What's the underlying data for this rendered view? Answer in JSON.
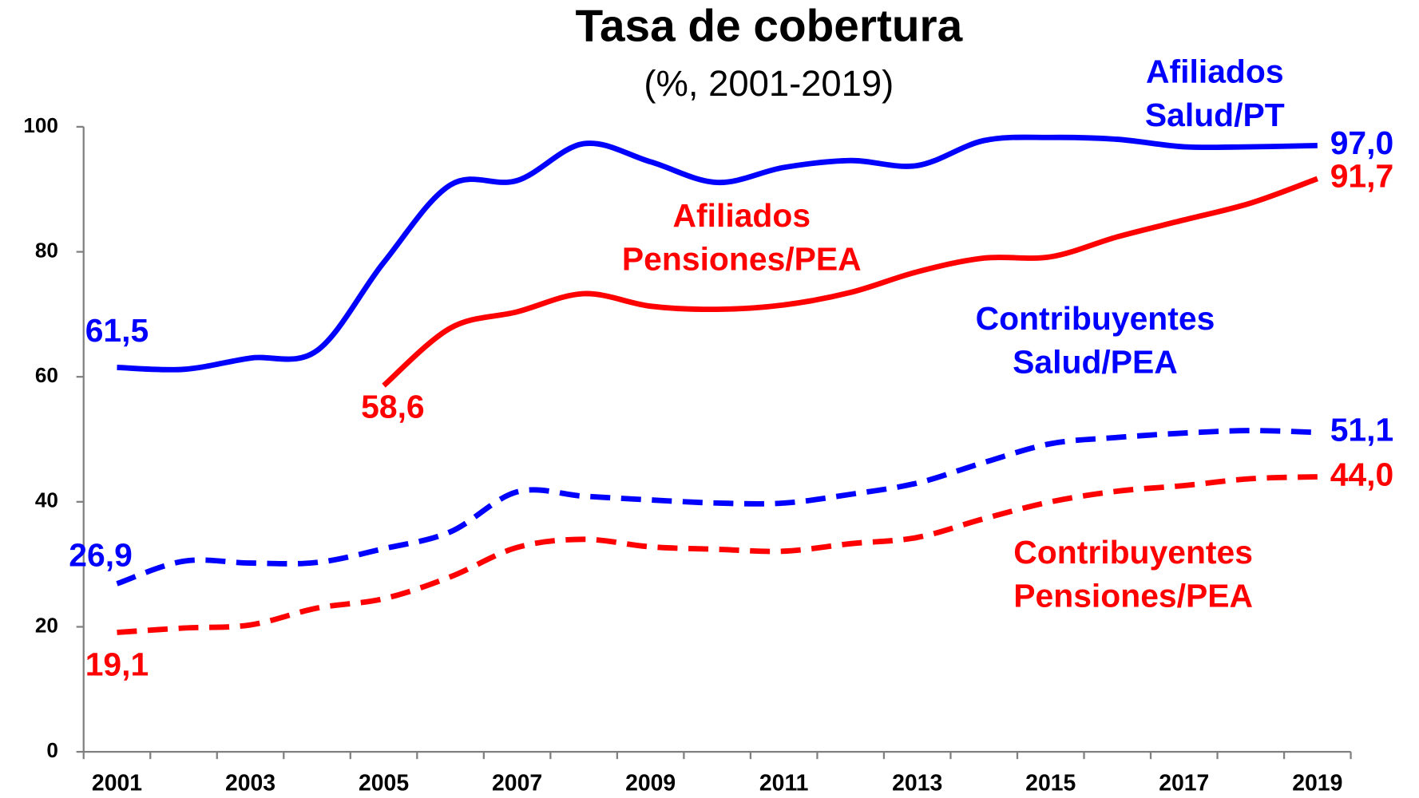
{
  "chart_data": {
    "type": "line",
    "title": "Tasa de cobertura",
    "subtitle": "(%, 2001-2019)",
    "categories": [
      "2001",
      null,
      "2003",
      null,
      "2005",
      null,
      "2007",
      null,
      "2009",
      null,
      "2011",
      null,
      "2013",
      null,
      "2015",
      null,
      "2017",
      null,
      "2019"
    ],
    "ylim": [
      0,
      100
    ],
    "yticks": [
      0,
      20,
      40,
      60,
      80,
      100
    ],
    "grid": false,
    "series": [
      {
        "name": "Afiliados Salud/PT",
        "color": "#0000ff",
        "dash": false,
        "values": [
          61.5,
          61.2,
          63.0,
          64.2,
          78.3,
          90.7,
          91.4,
          97.3,
          94.4,
          91.1,
          93.5,
          94.6,
          93.8,
          97.8,
          98.3,
          98.0,
          96.8,
          96.8,
          97.0
        ],
        "value_labels": [
          "61,5",
          null,
          null,
          null,
          null,
          null,
          null,
          null,
          null,
          null,
          null,
          null,
          null,
          null,
          null,
          null,
          null,
          null,
          "97,0"
        ]
      },
      {
        "name": "Afiliados Pensiones/PEA",
        "color": "#ff0000",
        "dash": false,
        "values": [
          null,
          null,
          null,
          null,
          58.6,
          67.8,
          70.4,
          73.3,
          71.3,
          70.8,
          71.5,
          73.5,
          76.8,
          79.0,
          79.2,
          82.4,
          85.1,
          87.8,
          91.7
        ],
        "value_labels": [
          null,
          null,
          null,
          null,
          "58,6",
          null,
          null,
          null,
          null,
          null,
          null,
          null,
          null,
          null,
          null,
          null,
          null,
          null,
          "91,7"
        ]
      },
      {
        "name": "Contribuyentes Salud/PEA",
        "color": "#0000ff",
        "dash": true,
        "values": [
          26.9,
          30.5,
          30.2,
          30.3,
          32.5,
          35.2,
          41.6,
          40.9,
          40.3,
          39.8,
          39.8,
          41.2,
          43.0,
          46.3,
          49.3,
          50.3,
          51.0,
          51.4,
          51.1
        ],
        "value_labels": [
          "26,9",
          null,
          null,
          null,
          null,
          null,
          null,
          null,
          null,
          null,
          null,
          null,
          null,
          null,
          null,
          null,
          null,
          null,
          "51,1"
        ]
      },
      {
        "name": "Contribuyentes Pensiones/PEA",
        "color": "#ff0000",
        "dash": true,
        "values": [
          19.1,
          19.8,
          20.3,
          23.0,
          24.5,
          28.0,
          32.7,
          34.0,
          32.8,
          32.4,
          32.1,
          33.3,
          34.3,
          37.3,
          40.0,
          41.7,
          42.6,
          43.7,
          44.0
        ],
        "value_labels": [
          "19,1",
          null,
          null,
          null,
          null,
          null,
          null,
          null,
          null,
          null,
          null,
          null,
          null,
          null,
          null,
          null,
          null,
          null,
          "44,0"
        ]
      }
    ]
  }
}
